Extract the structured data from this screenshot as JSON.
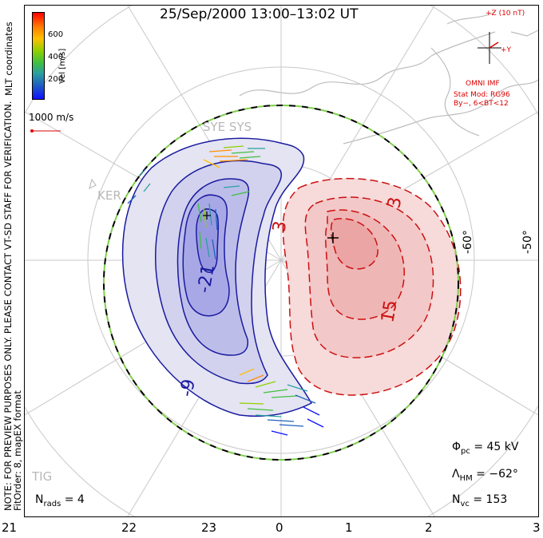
{
  "title": "25/Sep/2000 13:00–13:02 UT",
  "mlt_ticks": [
    "21",
    "22",
    "23",
    "0",
    "1",
    "2",
    "3"
  ],
  "lat_labels": [
    "-60°",
    "-50°"
  ],
  "side_note": {
    "line1": "NOTE: FOR PREVIEW PURPOSES ONLY. PLEASE CONTACT VT-SD STAFF FOR VERIFICATION.",
    "line2": "FitOrder: 8, mapEX format"
  },
  "mlt_coordinates": "MLT coordinates",
  "colorbar": {
    "title": "Vel [m/s]",
    "ticks": [
      "600",
      "400",
      "200"
    ],
    "colors": [
      "#ff0000",
      "#ff7a00",
      "#ffc000",
      "#90d000",
      "#40c040",
      "#2aa0a0",
      "#2060c0",
      "#1010ff"
    ]
  },
  "velocity_reference": "1000 m/s",
  "imf": {
    "scale": "+Z (10 nT)",
    "y_axis": "+Y",
    "source": "OMNI IMF",
    "stat_mod": "Stat Mod: RG96",
    "condition": "By−, 6<BT<12"
  },
  "radars": [
    "SYE SYS",
    "KER",
    "TIG"
  ],
  "contour_labels": [
    "-21",
    "-9",
    "3",
    "3",
    "15"
  ],
  "stats": {
    "phi_pc_label": "Φ",
    "phi_pc_sub": "pc",
    "phi_pc_value": " = 45 kV",
    "lambda_label": "Λ",
    "lambda_sub": "HM",
    "lambda_value": " = −62°",
    "nvc_label": "N",
    "nvc_sub": "vc",
    "nvc_value": " = 153",
    "nrads_label": "N",
    "nrads_sub": "rads",
    "nrads_value": " = 4"
  },
  "colors": {
    "negative_contour": "#1a1aa0",
    "positive_contour": "#cc1010",
    "hmb_dash_a": "#000000",
    "hmb_dash_b": "#7ed04a",
    "grid": "#c8c8c8",
    "coast": "#bdbdbd"
  }
}
